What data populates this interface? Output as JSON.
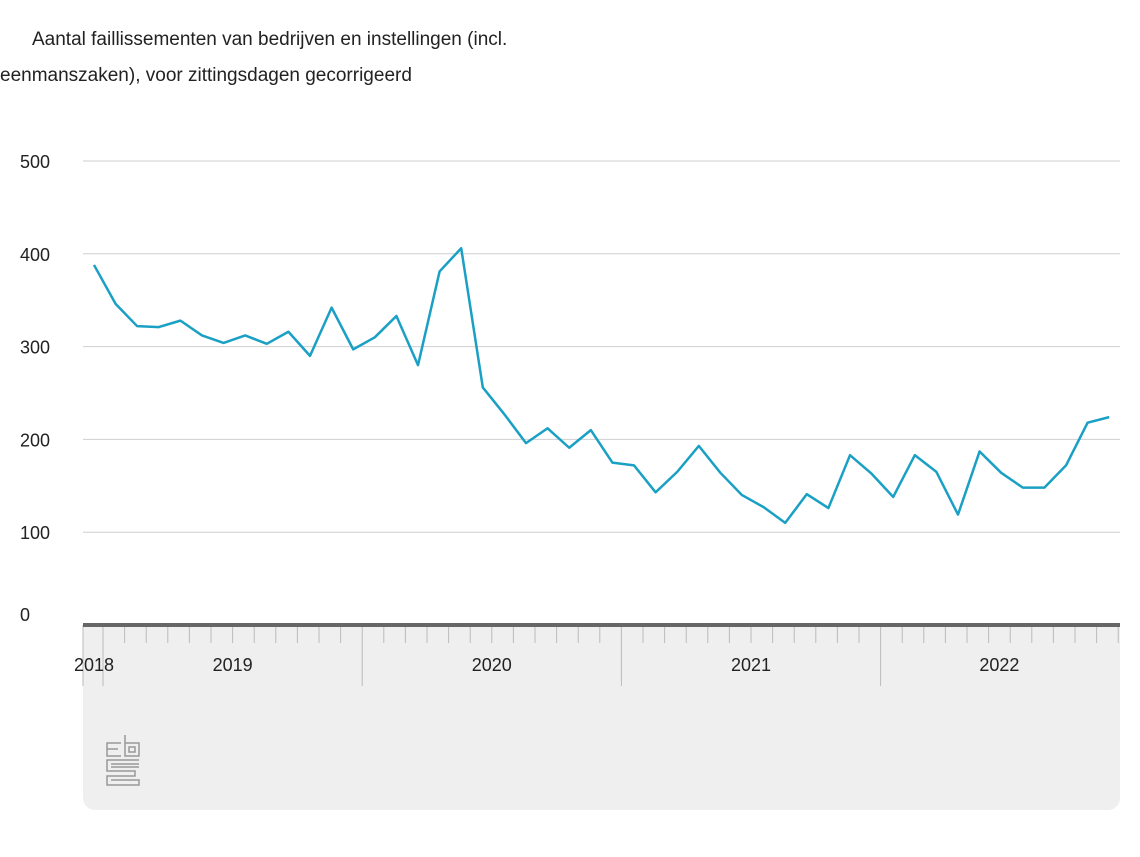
{
  "title_line1": "Aantal faillissementen van bedrijven en instellingen (incl.",
  "title_line2": "eenmanszaken), voor zittingsdagen gecorrigeerd",
  "logo_text": "cbs",
  "chart_data": {
    "type": "line",
    "title": "Aantal faillissementen van bedrijven en instellingen (incl. eenmanszaken), voor zittingsdagen gecorrigeerd",
    "xlabel": "",
    "ylabel": "",
    "ylim": [
      0,
      500
    ],
    "yticks": [
      0,
      100,
      200,
      300,
      400,
      500
    ],
    "grid": true,
    "x_start": "2018-12",
    "year_labels": [
      "2018",
      "2019",
      "2020",
      "2021",
      "2022"
    ],
    "line_color": "#1aa0c4",
    "series": [
      {
        "name": "Faillissementen",
        "values": [
          388,
          346,
          322,
          321,
          328,
          312,
          304,
          312,
          303,
          316,
          290,
          342,
          297,
          310,
          333,
          280,
          381,
          406,
          256,
          227,
          196,
          212,
          191,
          210,
          175,
          172,
          143,
          165,
          193,
          164,
          140,
          127,
          110,
          141,
          126,
          183,
          163,
          138,
          183,
          165,
          119,
          187,
          164,
          148,
          148,
          172,
          218,
          224
        ]
      }
    ]
  }
}
